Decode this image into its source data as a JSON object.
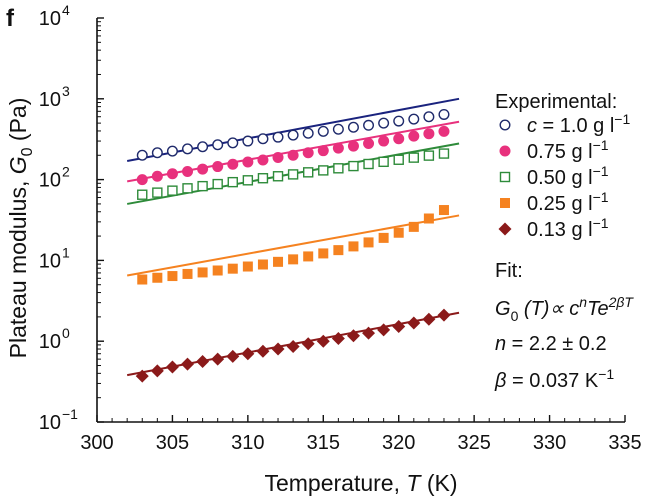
{
  "panel_label": "f",
  "chart_data": {
    "type": "scatter",
    "xlabel": {
      "main": "Temperature, ",
      "var": "T",
      "unit": " (K)"
    },
    "ylabel": {
      "main": "Plateau modulus, ",
      "var": "G",
      "sub": "0",
      "unit": " (Pa)"
    },
    "xlim": [
      300,
      335
    ],
    "ylim": [
      0.1,
      10000
    ],
    "yscale": "log",
    "x_ticks": [
      "300",
      "305",
      "310",
      "315",
      "320",
      "325",
      "330",
      "335"
    ],
    "y_ticks": [
      {
        "base": "10",
        "exp": "−1",
        "value": 0.1
      },
      {
        "base": "10",
        "exp": "0",
        "value": 1
      },
      {
        "base": "10",
        "exp": "1",
        "value": 10
      },
      {
        "base": "10",
        "exp": "2",
        "value": 100
      },
      {
        "base": "10",
        "exp": "3",
        "value": 1000
      },
      {
        "base": "10",
        "exp": "4",
        "value": 10000
      }
    ],
    "legend": {
      "heading": "Experimental:",
      "placement": "right",
      "fit_heading": "Fit:",
      "fit_lines": [
        {
          "id": "formula",
          "parts": [
            "G",
            "0",
            " (T)∝ c",
            "n",
            "Te",
            "2βT"
          ]
        },
        {
          "id": "n",
          "parts": [
            "n",
            " = 2.2 ± 0.2"
          ]
        },
        {
          "id": "beta",
          "parts": [
            "β",
            " = 0.037 K",
            "−1"
          ]
        }
      ]
    },
    "series": [
      {
        "name": "c = 1.0 g l−1",
        "label_prefix": "c",
        "label_value": " = 1.0 g l",
        "label_exp": "−1",
        "marker": "circle-open",
        "color": "#1f2a6b",
        "line_color": "#1a237e",
        "x": [
          303,
          304,
          305,
          306,
          307,
          308,
          309,
          310,
          311,
          312,
          313,
          314,
          315,
          316,
          317,
          318,
          319,
          320,
          321,
          322,
          323
        ],
        "y": [
          200,
          215,
          225,
          240,
          255,
          270,
          285,
          300,
          320,
          335,
          355,
          375,
          395,
          420,
          445,
          470,
          500,
          530,
          560,
          600,
          640
        ],
        "fit": {
          "x": [
            302,
            324
          ],
          "y": [
            170,
            1000
          ]
        }
      },
      {
        "name": "0.75 g l−1",
        "label_value": "0.75 g l",
        "label_exp": "−1",
        "marker": "circle-filled",
        "color": "#e8317d",
        "line_color": "#e8317d",
        "x": [
          303,
          304,
          305,
          306,
          307,
          308,
          309,
          310,
          311,
          312,
          313,
          314,
          315,
          316,
          317,
          318,
          319,
          320,
          321,
          322,
          323
        ],
        "y": [
          100,
          110,
          118,
          126,
          135,
          145,
          155,
          165,
          175,
          188,
          200,
          215,
          228,
          245,
          260,
          280,
          300,
          320,
          345,
          370,
          395
        ],
        "fit": {
          "x": [
            302,
            324
          ],
          "y": [
            95,
            520
          ]
        }
      },
      {
        "name": "0.50 g l−1",
        "label_value": "0.50 g l",
        "label_exp": "−1",
        "marker": "square-open",
        "color": "#2e8b3a",
        "line_color": "#2e8b3a",
        "x": [
          303,
          304,
          305,
          306,
          307,
          308,
          309,
          310,
          311,
          312,
          313,
          314,
          315,
          316,
          317,
          318,
          319,
          320,
          321,
          322,
          323
        ],
        "y": [
          65,
          69,
          73,
          78,
          83,
          88,
          93,
          98,
          104,
          110,
          116,
          123,
          130,
          138,
          147,
          156,
          166,
          176,
          187,
          198,
          210
        ],
        "fit": {
          "x": [
            302,
            324
          ],
          "y": [
            50,
            280
          ]
        }
      },
      {
        "name": "0.25 g l−1",
        "label_value": "0.25 g l",
        "label_exp": "−1",
        "marker": "square-filled",
        "color": "#f58220",
        "line_color": "#f58220",
        "x": [
          303,
          304,
          305,
          306,
          307,
          308,
          309,
          310,
          311,
          312,
          313,
          314,
          315,
          316,
          317,
          318,
          319,
          320,
          321,
          322,
          323
        ],
        "y": [
          5.8,
          6.1,
          6.4,
          6.8,
          7.1,
          7.5,
          7.9,
          8.4,
          8.9,
          9.6,
          10.3,
          11.2,
          12.2,
          13.4,
          14.9,
          16.7,
          19.0,
          22.0,
          26.0,
          33.0,
          42.0
        ],
        "fit": {
          "x": [
            302,
            324
          ],
          "y": [
            6.5,
            36
          ]
        }
      },
      {
        "name": "0.13 g l−1",
        "label_value": "0.13 g l",
        "label_exp": "−1",
        "marker": "diamond-filled",
        "color": "#8b1a1a",
        "line_color": "#8b1a1a",
        "x": [
          303,
          304,
          305,
          306,
          307,
          308,
          309,
          310,
          311,
          312,
          313,
          314,
          315,
          316,
          317,
          318,
          319,
          320,
          321,
          322,
          323
        ],
        "y": [
          0.37,
          0.43,
          0.48,
          0.52,
          0.56,
          0.6,
          0.65,
          0.7,
          0.75,
          0.8,
          0.86,
          0.93,
          1.0,
          1.08,
          1.17,
          1.26,
          1.38,
          1.52,
          1.68,
          1.87,
          2.1
        ],
        "fit": {
          "x": [
            302,
            324
          ],
          "y": [
            0.38,
            2.25
          ]
        }
      }
    ]
  }
}
